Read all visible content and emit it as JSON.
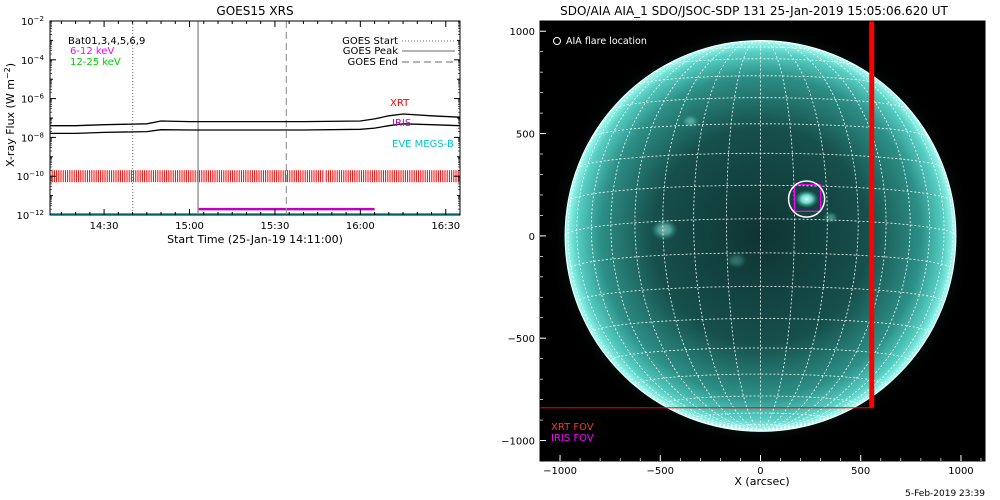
{
  "chart_data": [
    {
      "type": "line",
      "title": "GOES15 XRS",
      "xlabel": "Start Time (25-Jan-19 14:11:00)",
      "ylabel": "X-ray Flux (W m⁻²)",
      "y_scale": "log",
      "ylim": [
        1e-12,
        0.01
      ],
      "xlim": [
        "14:11",
        "16:35"
      ],
      "x_tick_labels": [
        "14:30",
        "15:00",
        "15:30",
        "16:00",
        "16:30"
      ],
      "y_tick_labels": [
        {
          "base": "10",
          "exp": "−2"
        },
        {
          "base": "10",
          "exp": "−4"
        },
        {
          "base": "10",
          "exp": "−6"
        },
        {
          "base": "10",
          "exp": "−8"
        },
        {
          "base": "10",
          "exp": "−10"
        },
        {
          "base": "10",
          "exp": "−12"
        }
      ],
      "header_text": "Bat01,3,4,5,6,9",
      "channels": [
        {
          "name": "6-12 keV",
          "color": "#ff00ff"
        },
        {
          "name": "12-25 keV",
          "color": "#00ff00"
        }
      ],
      "legend": {
        "placement": "top-right",
        "entries": [
          {
            "label": "GOES Start",
            "style": "dotted"
          },
          {
            "label": "GOES Peak",
            "style": "solid"
          },
          {
            "label": "GOES End",
            "style": "dashed"
          }
        ]
      },
      "events": {
        "start": "14:40",
        "peak": "15:03",
        "end": "15:34"
      },
      "series": [
        {
          "color": "#000000",
          "x": [
            "14:11",
            "14:20",
            "14:30",
            "14:45",
            "14:50",
            "15:00",
            "15:20",
            "15:40",
            "16:00",
            "16:05",
            "16:10",
            "16:15",
            "16:25",
            "16:35"
          ],
          "y": [
            4e-08,
            4e-08,
            4.5e-08,
            5e-08,
            7e-08,
            6.5e-08,
            6.5e-08,
            6.5e-08,
            7e-08,
            9e-08,
            1.3e-07,
            1.6e-07,
            1.3e-07,
            1.1e-07
          ]
        },
        {
          "color": "#000000",
          "x": [
            "14:11",
            "14:20",
            "14:30",
            "14:45",
            "14:50",
            "15:00",
            "15:20",
            "15:40",
            "16:00",
            "16:05",
            "16:10",
            "16:15",
            "16:25",
            "16:35"
          ],
          "y": [
            1.6e-08,
            1.6e-08,
            1.8e-08,
            2e-08,
            2.5e-08,
            2.4e-08,
            2.4e-08,
            2.4e-08,
            2.6e-08,
            3e-08,
            4e-08,
            5e-08,
            4.5e-08,
            4e-08
          ]
        }
      ],
      "coverage": [
        {
          "label": "XRT",
          "color": "#ff0000",
          "y": 1e-10,
          "style": "ticks",
          "ranges": [
            [
              "14:11",
              "15:47"
            ],
            [
              "15:48",
              "16:35"
            ]
          ]
        },
        {
          "label": "IRIS",
          "color": "#c000c0",
          "y": 2e-12,
          "ranges": [
            [
              "15:03",
              "16:05"
            ]
          ]
        },
        {
          "label": "EVE MEGS-B",
          "color": "#00c8c8",
          "y": 1.1e-12,
          "ranges": [
            [
              "14:11",
              "16:35"
            ]
          ]
        }
      ]
    },
    {
      "type": "map",
      "title": "SDO/AIA AIA_1 SDO/JSOC-SDP 131 25-Jan-2019 15:05:06.620 UT",
      "xlabel": "X (arcsec)",
      "ylabel": "",
      "xlim": [
        -1100,
        1120
      ],
      "ylim": [
        -1100,
        1050
      ],
      "x_tick_labels": [
        "−1000",
        "−500",
        "0",
        "500",
        "1000"
      ],
      "y_tick_labels": [
        "1000",
        "500",
        "0",
        "−500",
        "−1000"
      ],
      "solar_radius_arcsec": 975,
      "flare_location": {
        "label": "AIA flare location",
        "x": 230,
        "y": 180
      },
      "iris_fov": {
        "label": "IRIS FOV",
        "color": "#ff00ff",
        "x0": 170,
        "x1": 300,
        "y0": 120,
        "y1": 250
      },
      "xrt_fov": {
        "label": "XRT FOV",
        "color": "#ff0000",
        "x0": -1100,
        "x1": 555,
        "y0": -840,
        "y1": 1050
      },
      "colors": {
        "disk": "#5cd6c8",
        "background": "#000000"
      }
    }
  ],
  "footer_date": "5-Feb-2019 23:39"
}
